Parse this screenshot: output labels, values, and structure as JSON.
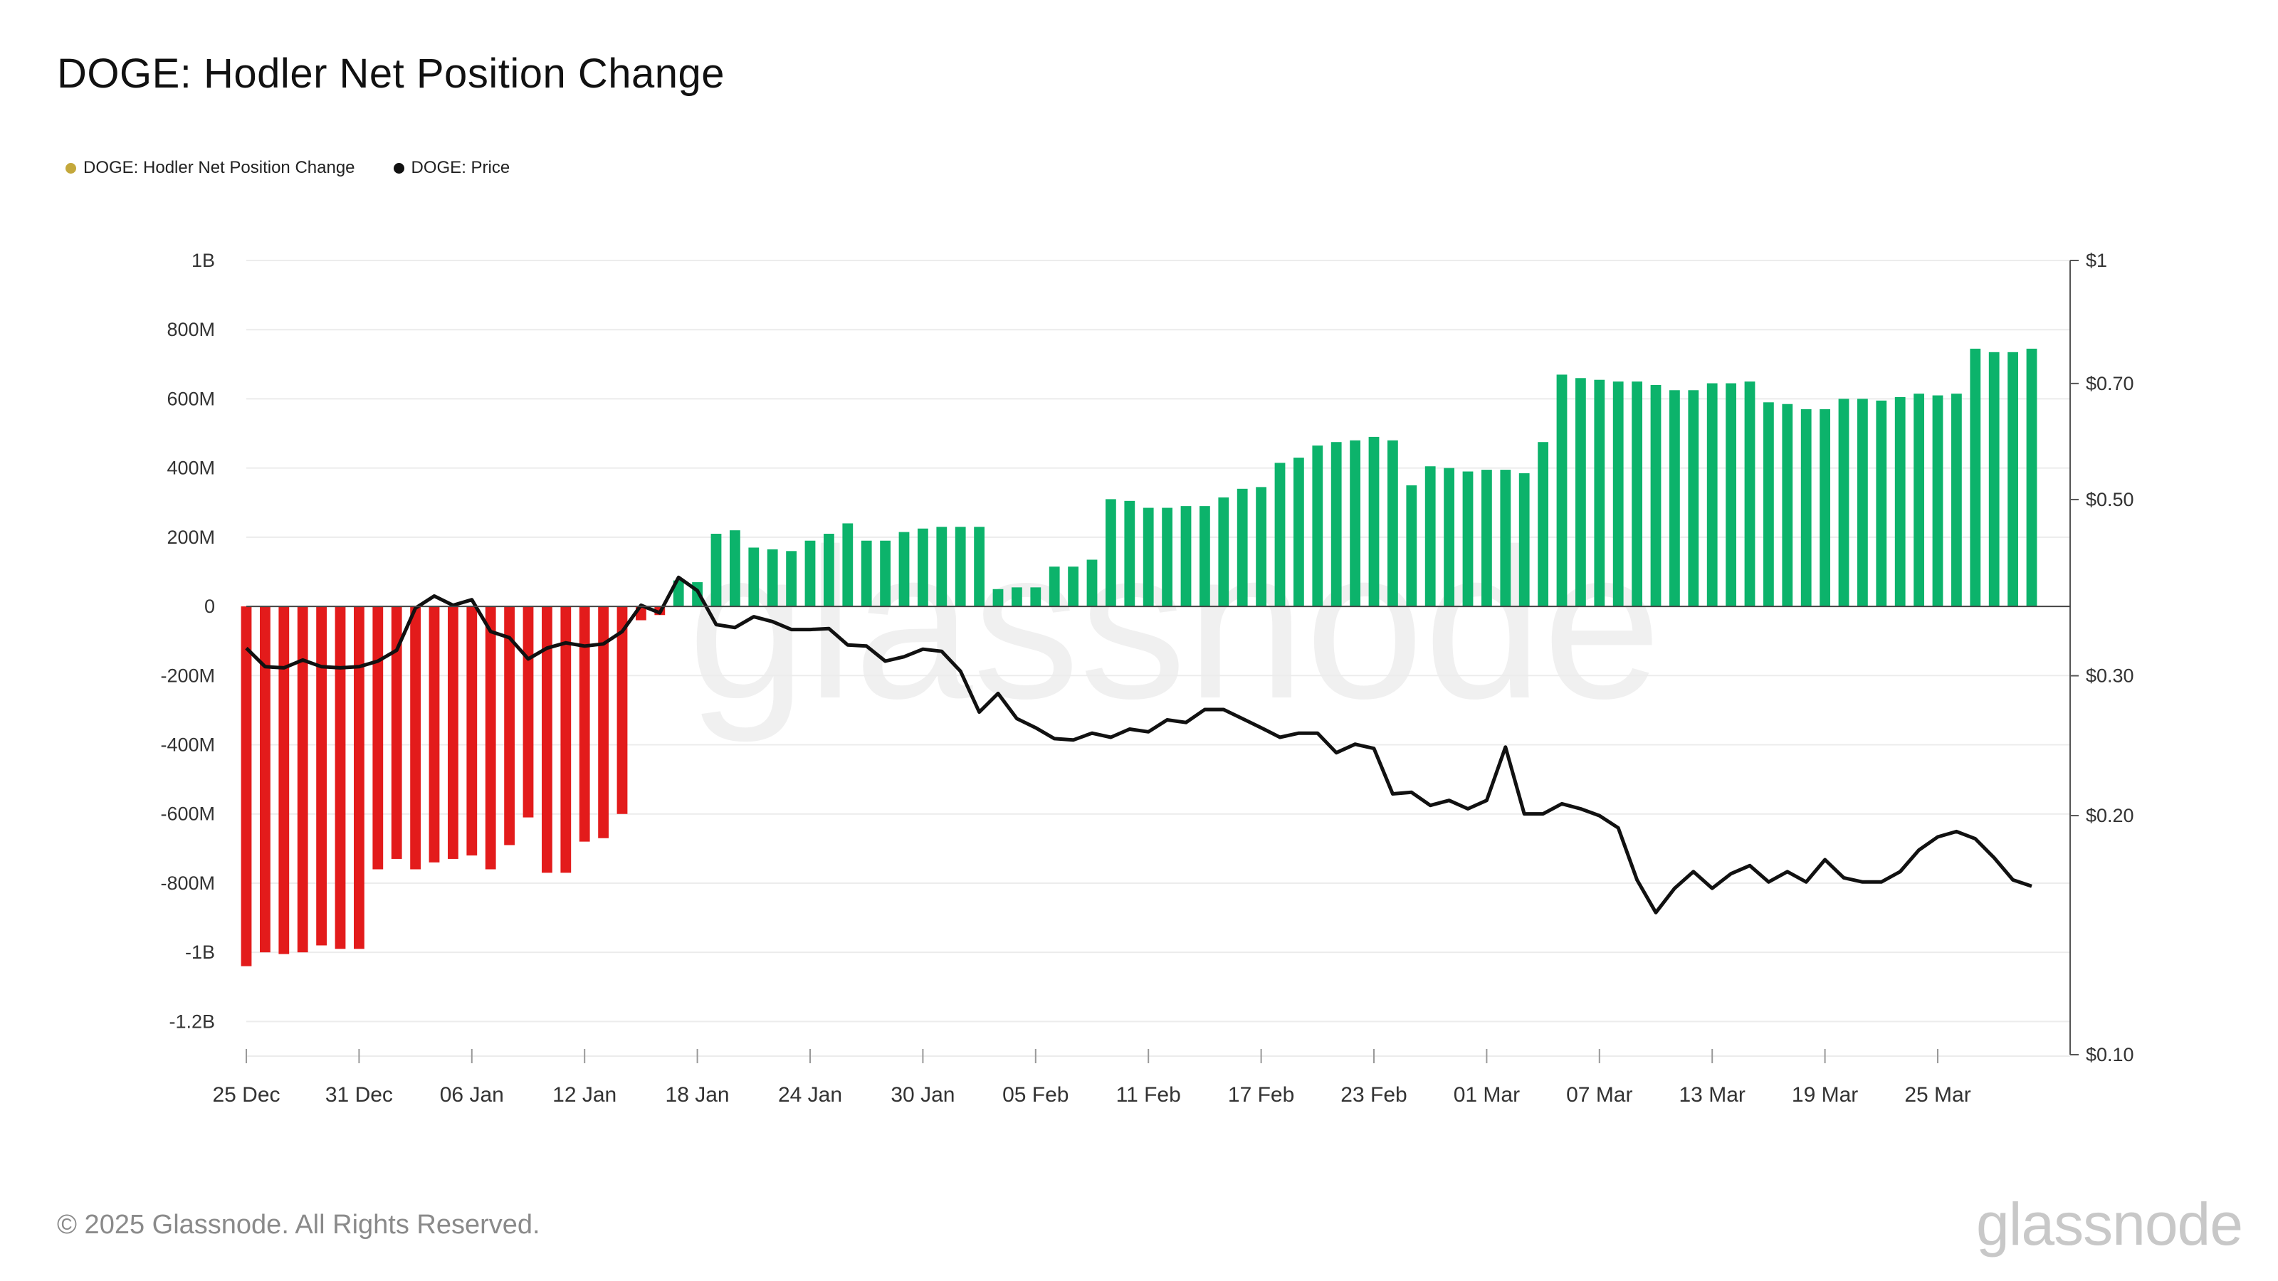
{
  "title": "DOGE: Hodler Net Position Change",
  "legend": [
    {
      "label": "DOGE: Hodler Net Position Change",
      "color": "#c4a83b"
    },
    {
      "label": "DOGE: Price",
      "color": "#111111"
    }
  ],
  "footer": "© 2025 Glassnode. All Rights Reserved.",
  "brand": "glassnode",
  "watermark": "glassnode",
  "colors": {
    "positive": "#0cb36b",
    "negative": "#e31b1b",
    "price": "#111111",
    "grid": "#ececec",
    "axis": "#555555"
  },
  "chart_data": {
    "type": "bar",
    "title": "DOGE: Hodler Net Position Change",
    "left_axis": {
      "label": "",
      "ylim": [
        -1300000000,
        1000000000
      ],
      "ticks": [
        {
          "v": 1000000000,
          "label": "1B"
        },
        {
          "v": 800000000,
          "label": "800M"
        },
        {
          "v": 600000000,
          "label": "600M"
        },
        {
          "v": 400000000,
          "label": "400M"
        },
        {
          "v": 200000000,
          "label": "200M"
        },
        {
          "v": 0,
          "label": "0"
        },
        {
          "v": -200000000,
          "label": "-200M"
        },
        {
          "v": -400000000,
          "label": "-400M"
        },
        {
          "v": -600000000,
          "label": "-600M"
        },
        {
          "v": -800000000,
          "label": "-800M"
        },
        {
          "v": -1000000000,
          "label": "-1B"
        },
        {
          "v": -1200000000,
          "label": "-1.2B"
        }
      ]
    },
    "right_axis": {
      "scale": "log",
      "ylim": [
        0.1,
        1
      ],
      "ticks": [
        {
          "v": 1,
          "label": "$1"
        },
        {
          "v": 0.7,
          "label": "$0.70"
        },
        {
          "v": 0.5,
          "label": "$0.50"
        },
        {
          "v": 0.3,
          "label": "$0.30"
        },
        {
          "v": 0.2,
          "label": "$0.20"
        },
        {
          "v": 0.1,
          "label": "$0.10"
        }
      ]
    },
    "x_ticks": [
      {
        "i": 0,
        "label": "25 Dec"
      },
      {
        "i": 6,
        "label": "31 Dec"
      },
      {
        "i": 12,
        "label": "06 Jan"
      },
      {
        "i": 18,
        "label": "12 Jan"
      },
      {
        "i": 24,
        "label": "18 Jan"
      },
      {
        "i": 30,
        "label": "24 Jan"
      },
      {
        "i": 36,
        "label": "30 Jan"
      },
      {
        "i": 42,
        "label": "05 Feb"
      },
      {
        "i": 48,
        "label": "11 Feb"
      },
      {
        "i": 54,
        "label": "17 Feb"
      },
      {
        "i": 60,
        "label": "23 Feb"
      },
      {
        "i": 66,
        "label": "01 Mar"
      },
      {
        "i": 72,
        "label": "07 Mar"
      },
      {
        "i": 78,
        "label": "13 Mar"
      },
      {
        "i": 84,
        "label": "19 Mar"
      },
      {
        "i": 90,
        "label": "25 Mar"
      }
    ],
    "series": [
      {
        "name": "DOGE: Hodler Net Position Change",
        "type": "bar",
        "values": [
          -1040000000,
          -1000000000,
          -1005000000,
          -1000000000,
          -980000000,
          -990000000,
          -990000000,
          -760000000,
          -730000000,
          -760000000,
          -740000000,
          -730000000,
          -720000000,
          -760000000,
          -690000000,
          -610000000,
          -770000000,
          -770000000,
          -680000000,
          -670000000,
          -600000000,
          -40000000,
          -25000000,
          75000000,
          70000000,
          210000000,
          220000000,
          170000000,
          165000000,
          160000000,
          190000000,
          210000000,
          240000000,
          190000000,
          190000000,
          215000000,
          225000000,
          230000000,
          230000000,
          230000000,
          50000000,
          55000000,
          55000000,
          115000000,
          115000000,
          135000000,
          310000000,
          305000000,
          285000000,
          285000000,
          290000000,
          290000000,
          315000000,
          340000000,
          345000000,
          415000000,
          430000000,
          465000000,
          475000000,
          480000000,
          490000000,
          480000000,
          350000000,
          405000000,
          400000000,
          390000000,
          395000000,
          395000000,
          385000000,
          475000000,
          670000000,
          660000000,
          655000000,
          650000000,
          650000000,
          640000000,
          625000000,
          625000000,
          645000000,
          645000000,
          650000000,
          590000000,
          585000000,
          570000000,
          570000000,
          600000000,
          600000000,
          595000000,
          605000000,
          615000000,
          610000000,
          615000000,
          745000000,
          735000000,
          735000000,
          745000000
        ]
      },
      {
        "name": "DOGE: Price",
        "type": "line",
        "values": [
          0.325,
          0.308,
          0.307,
          0.314,
          0.308,
          0.307,
          0.308,
          0.313,
          0.323,
          0.365,
          0.378,
          0.368,
          0.374,
          0.341,
          0.335,
          0.315,
          0.325,
          0.33,
          0.327,
          0.329,
          0.341,
          0.368,
          0.36,
          0.399,
          0.384,
          0.348,
          0.345,
          0.356,
          0.351,
          0.343,
          0.343,
          0.344,
          0.328,
          0.327,
          0.313,
          0.317,
          0.324,
          0.322,
          0.304,
          0.27,
          0.285,
          0.265,
          0.258,
          0.25,
          0.249,
          0.254,
          0.251,
          0.257,
          0.255,
          0.264,
          0.262,
          0.272,
          0.272,
          0.265,
          0.258,
          0.251,
          0.254,
          0.254,
          0.24,
          0.246,
          0.243,
          0.213,
          0.214,
          0.206,
          0.209,
          0.204,
          0.209,
          0.244,
          0.201,
          0.201,
          0.207,
          0.204,
          0.2,
          0.193,
          0.166,
          0.151,
          0.162,
          0.17,
          0.162,
          0.169,
          0.173,
          0.165,
          0.17,
          0.165,
          0.176,
          0.167,
          0.165,
          0.165,
          0.17,
          0.181,
          0.188,
          0.191,
          0.187,
          0.177,
          0.166,
          0.163
        ]
      }
    ]
  }
}
